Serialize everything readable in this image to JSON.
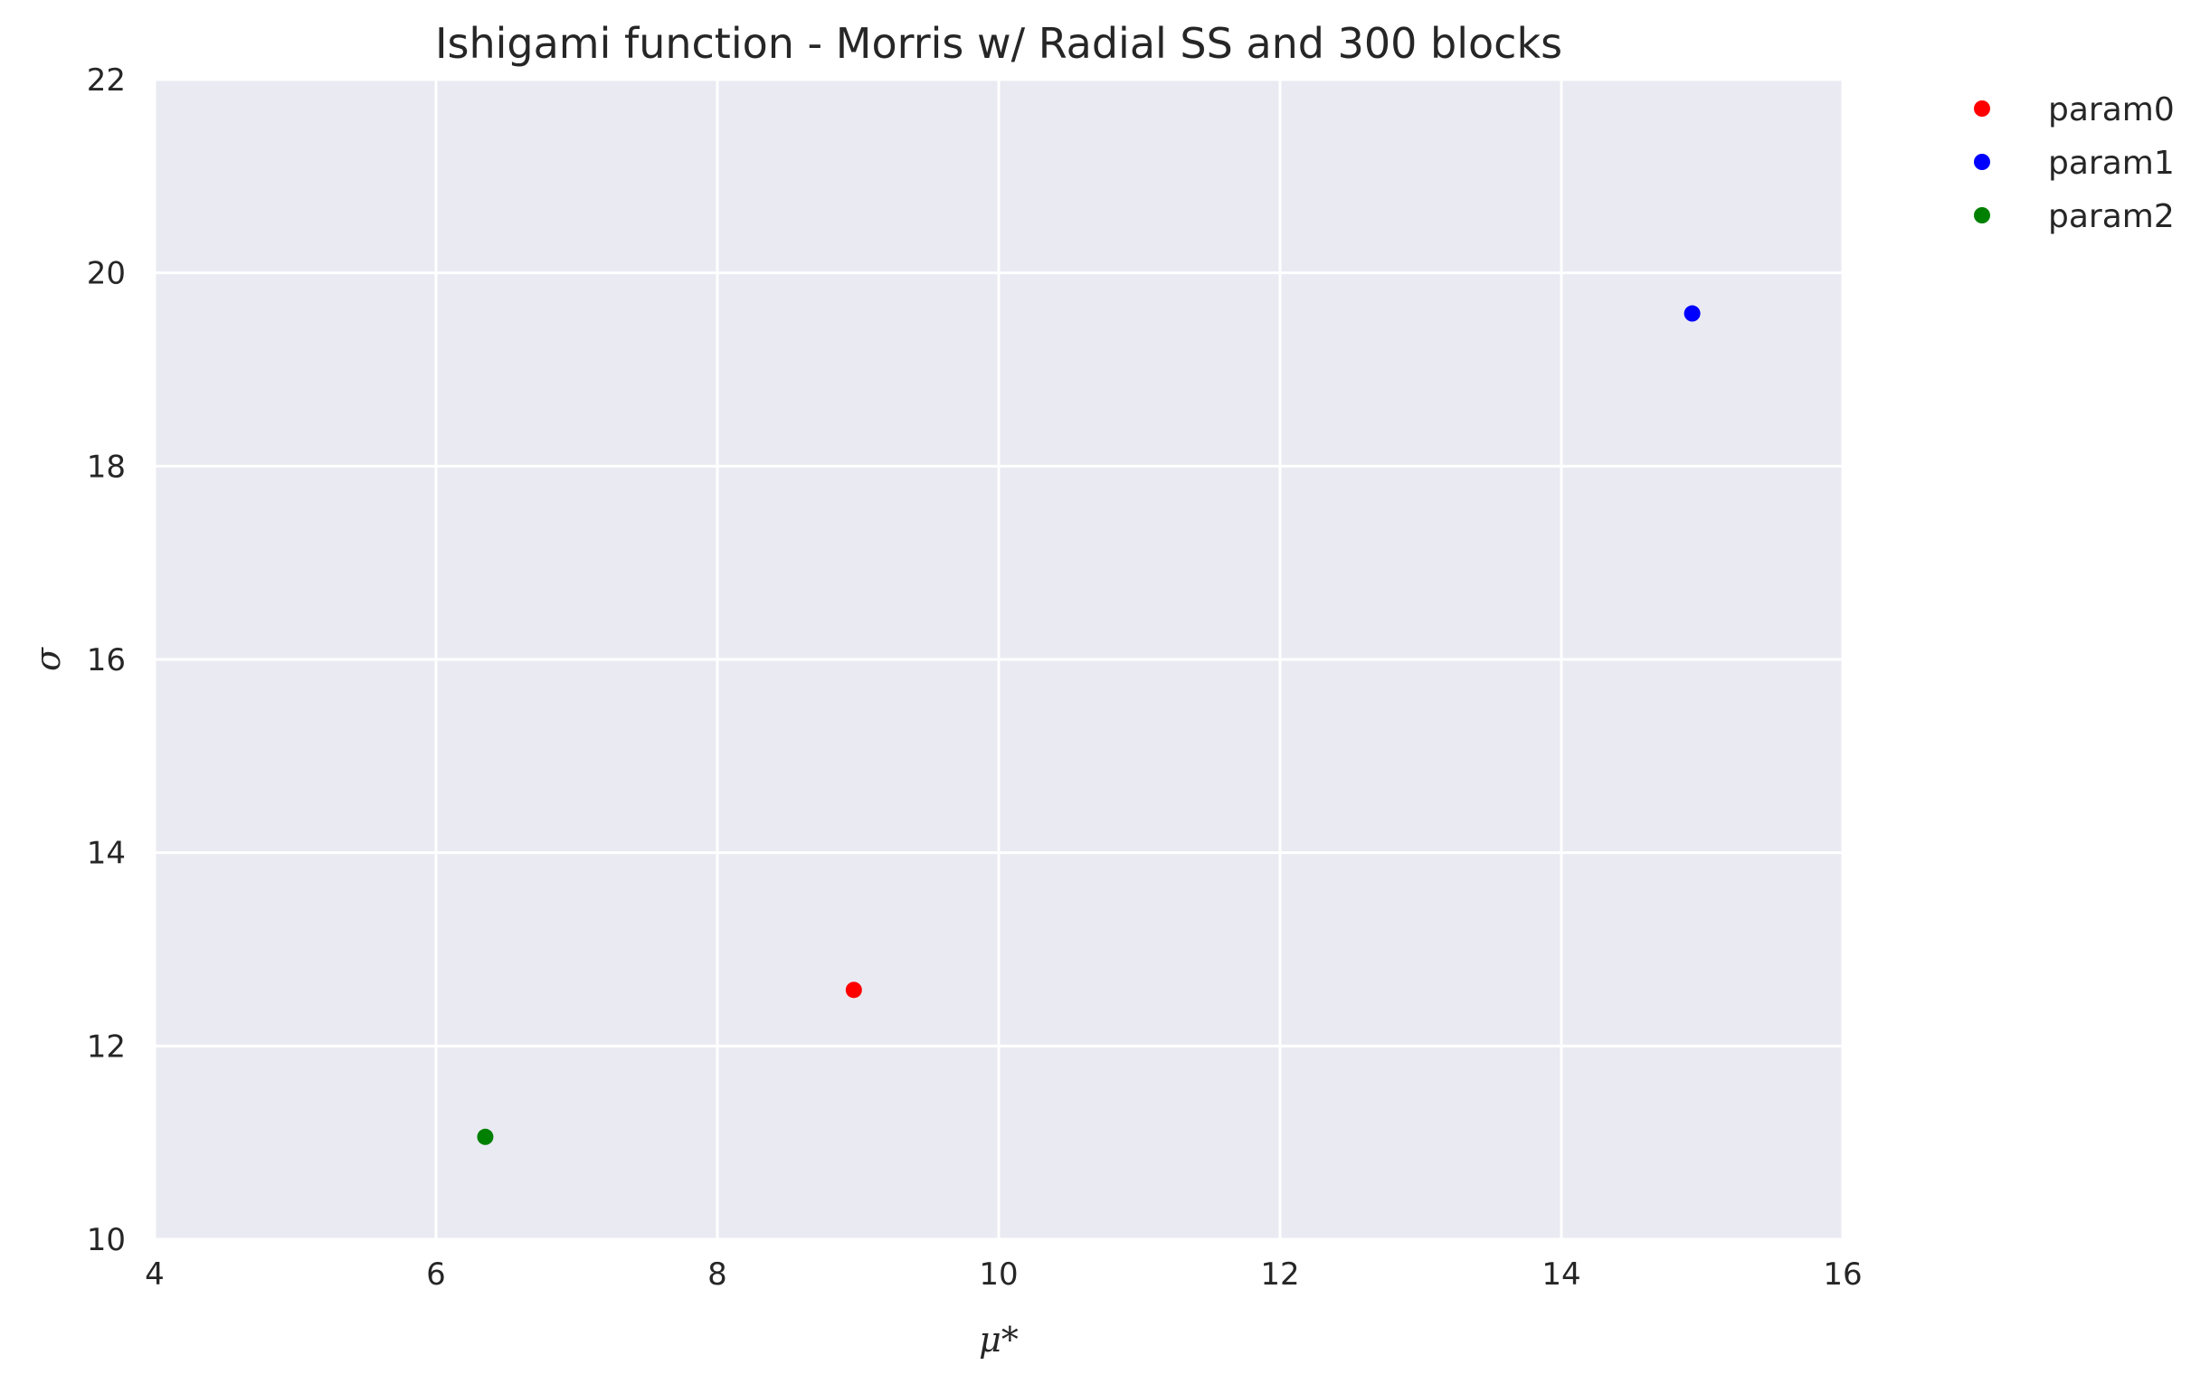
{
  "chart_data": {
    "type": "scatter",
    "title": "Ishigami function - Morris w/ Radial SS and 300 blocks",
    "xlabel": "μ*",
    "ylabel": "σ",
    "xlim": [
      4,
      16
    ],
    "ylim": [
      10,
      22
    ],
    "xticks": [
      "4",
      "6",
      "8",
      "10",
      "12",
      "14",
      "16"
    ],
    "yticks": [
      "10",
      "12",
      "14",
      "16",
      "18",
      "20",
      "22"
    ],
    "grid": true,
    "legend_position": "outside-top-right",
    "background_color": "#eaeaf2",
    "series": [
      {
        "name": "param0",
        "color": "#ff0000",
        "x": [
          8.97
        ],
        "y": [
          12.58
        ]
      },
      {
        "name": "param1",
        "color": "#0000ff",
        "x": [
          14.93
        ],
        "y": [
          19.58
        ]
      },
      {
        "name": "param2",
        "color": "#008000",
        "x": [
          6.35
        ],
        "y": [
          11.06
        ]
      }
    ]
  }
}
